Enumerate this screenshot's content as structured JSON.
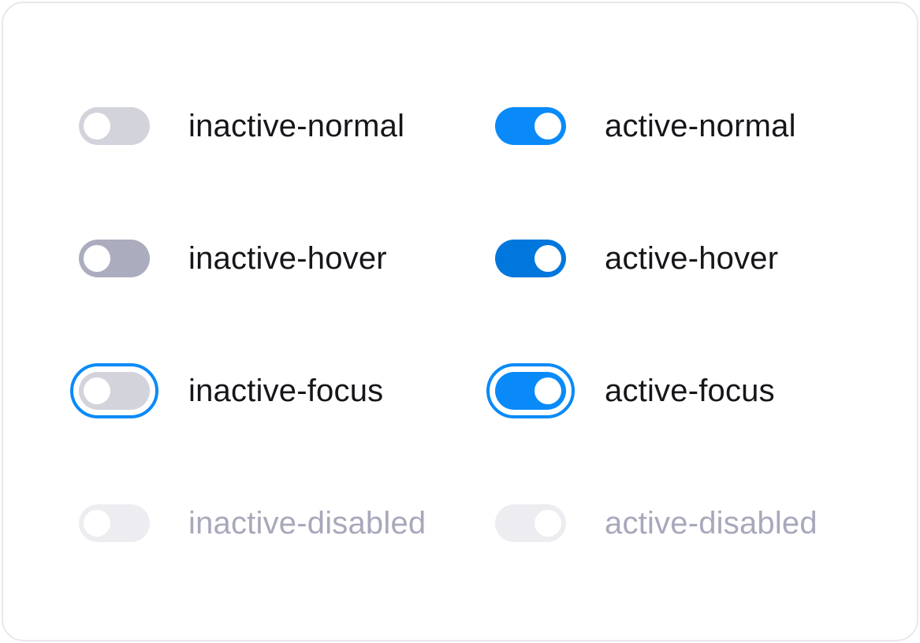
{
  "toggles": [
    {
      "label": "inactive-normal",
      "state": "inactive",
      "variant": "normal"
    },
    {
      "label": "active-normal",
      "state": "active",
      "variant": "normal"
    },
    {
      "label": "inactive-hover",
      "state": "inactive",
      "variant": "hover"
    },
    {
      "label": "active-hover",
      "state": "active",
      "variant": "hover"
    },
    {
      "label": "inactive-focus",
      "state": "inactive",
      "variant": "focus"
    },
    {
      "label": "active-focus",
      "state": "active",
      "variant": "focus"
    },
    {
      "label": "inactive-disabled",
      "state": "inactive",
      "variant": "disabled"
    },
    {
      "label": "active-disabled",
      "state": "active",
      "variant": "disabled"
    }
  ],
  "colors": {
    "accent": "#0a8af8",
    "accent_hover": "#0077dc",
    "inactive_track": "#d3d3dc",
    "inactive_hover_track": "#abadbf",
    "disabled_track": "#ededf1",
    "label_text": "#16161a",
    "disabled_text": "#a8a8bc",
    "card_border": "#e8e8ec"
  }
}
